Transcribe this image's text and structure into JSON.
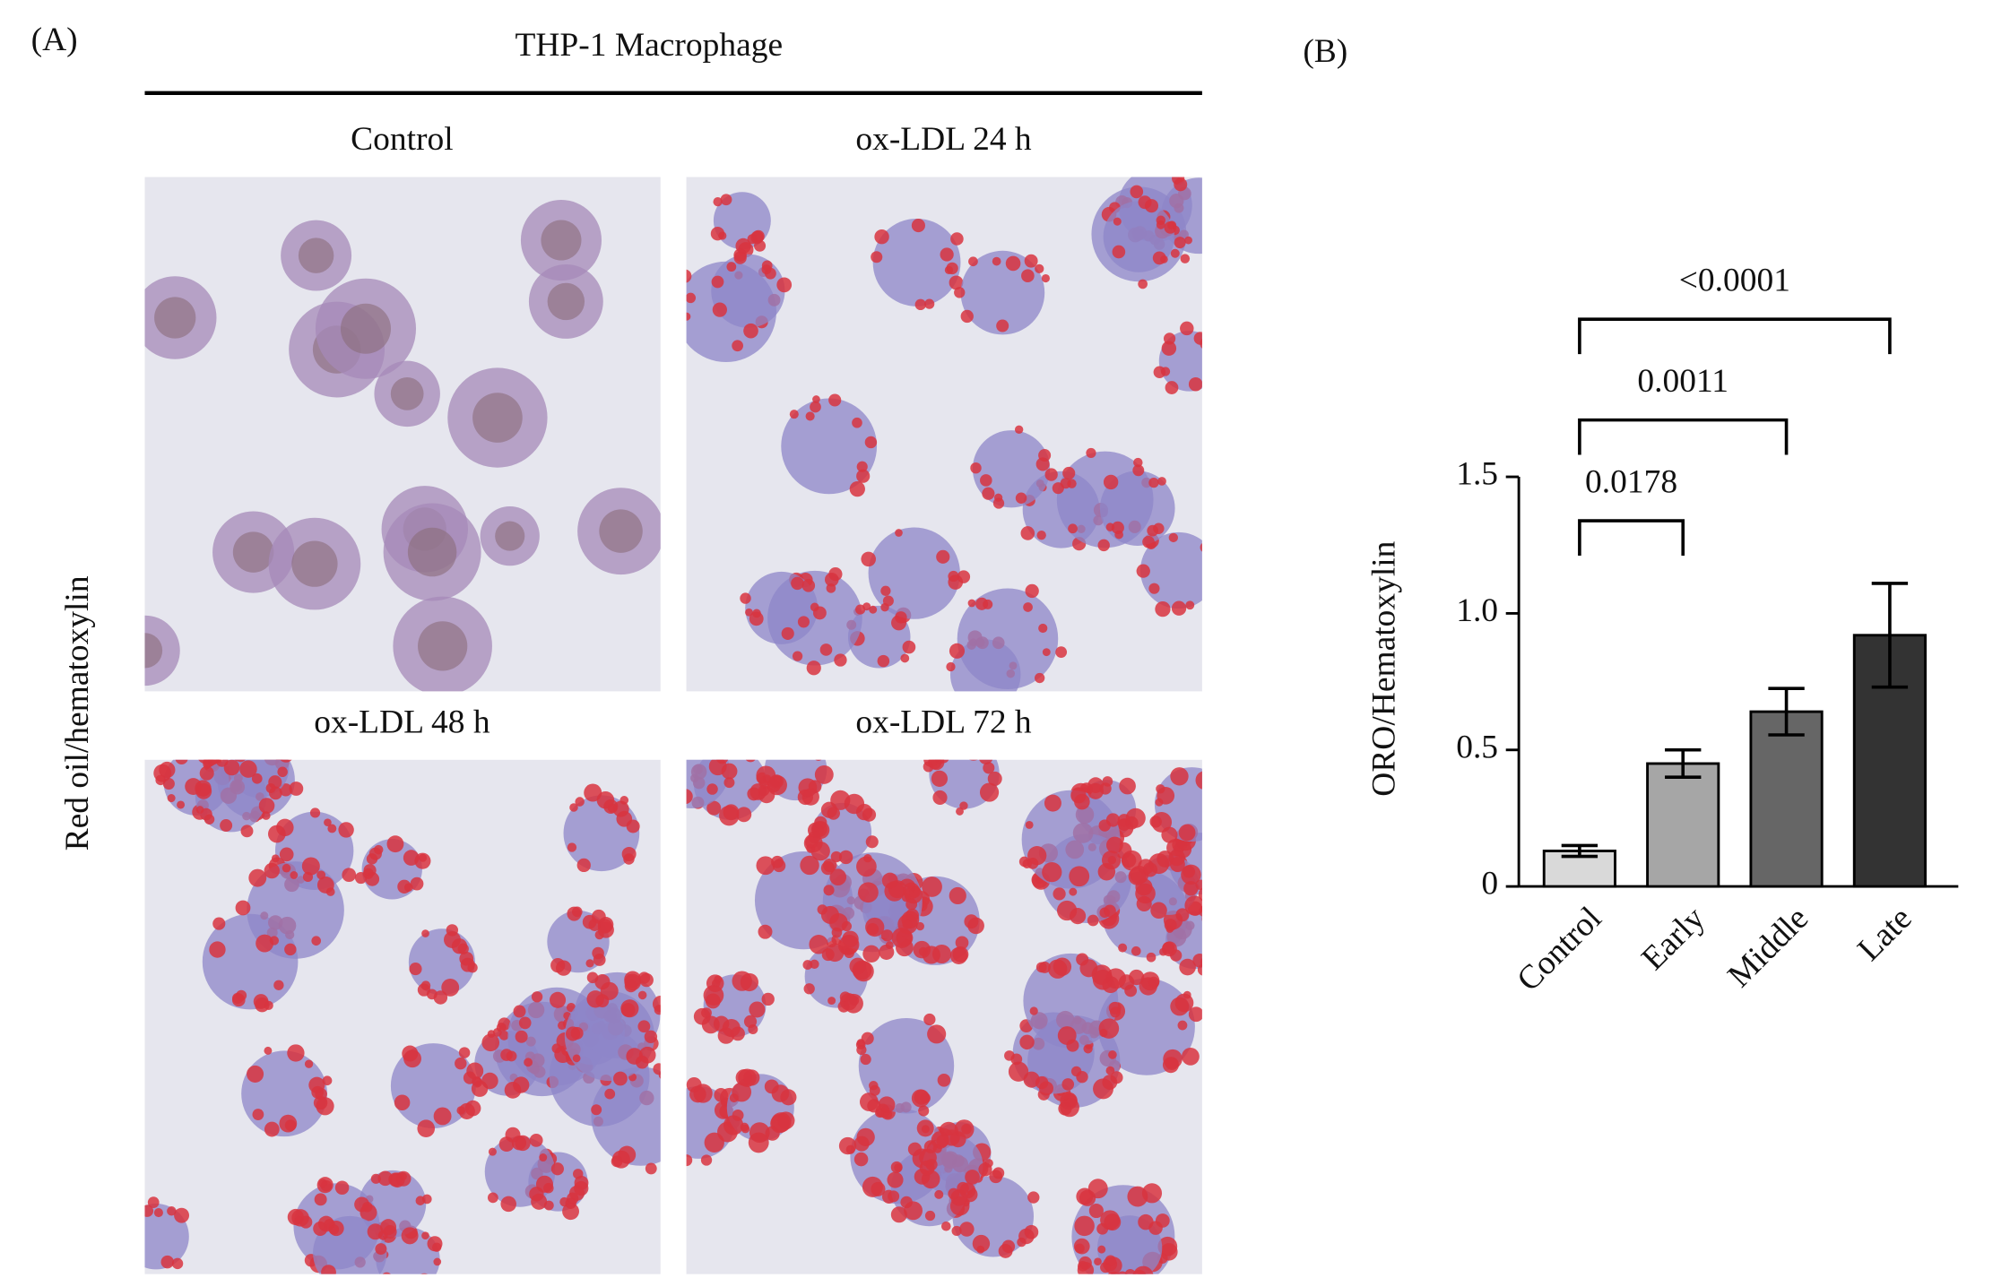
{
  "figure": {
    "panel_a_label": "(A)",
    "panel_b_label": "(B)",
    "header": "THP-1 Macrophage",
    "side_label": "Red oil/hematoxylin",
    "image_titles": [
      "Control",
      "ox-LDL 24 h",
      "ox-LDL 48 h",
      "ox-LDL 72 h"
    ]
  },
  "chart_data": {
    "type": "bar",
    "y_label": "ORO/Hematoxylin",
    "categories": [
      "Control",
      "Early",
      "Middle",
      "Late"
    ],
    "values": [
      0.13,
      0.45,
      0.64,
      0.92
    ],
    "errors": [
      0.02,
      0.05,
      0.085,
      0.19
    ],
    "colors": [
      "#d9d9d9",
      "#a6a6a6",
      "#666666",
      "#333333"
    ],
    "ylim": [
      0,
      1.5
    ],
    "yticks": [
      0,
      0.5,
      {
        "value": 1.0,
        "label": "1.0"
      },
      {
        "value": 1.5,
        "label": "1.5"
      }
    ],
    "annotations": [
      "0.0178",
      "0.0011",
      "<0.0001"
    ]
  }
}
